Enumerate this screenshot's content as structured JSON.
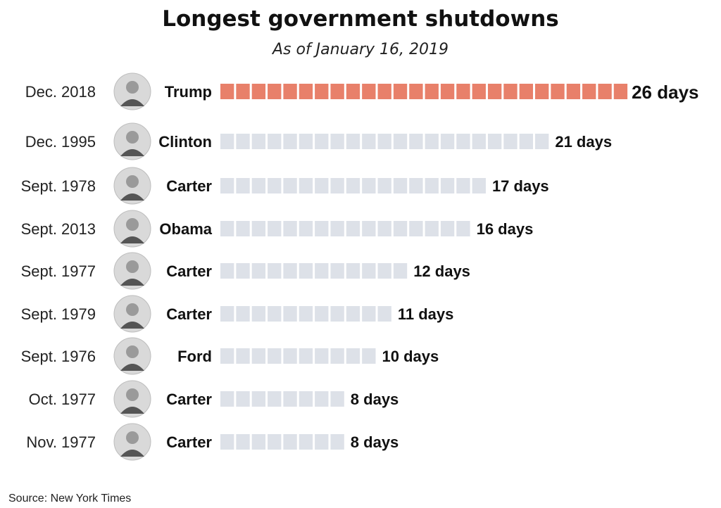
{
  "chart_data": {
    "type": "bar",
    "title": "Longest government shutdowns",
    "subtitle": "As of January 16, 2019",
    "unit_label": "days",
    "categories": [
      "Dec. 2018",
      "Dec. 1995",
      "Sept. 1978",
      "Sept. 2013",
      "Sept. 1977",
      "Sept. 1979",
      "Sept. 1976",
      "Oct. 1977",
      "Nov. 1977"
    ],
    "presidents": [
      "Trump",
      "Clinton",
      "Carter",
      "Obama",
      "Carter",
      "Carter",
      "Ford",
      "Carter",
      "Carter"
    ],
    "values": [
      26,
      21,
      17,
      16,
      12,
      11,
      10,
      8,
      8
    ],
    "value_labels": [
      "26 days",
      "21 days",
      "17 days",
      "16 days",
      "12 days",
      "11 days",
      "10 days",
      "8 days",
      "8 days"
    ],
    "highlight_index": 0,
    "source": "Source: New York Times"
  },
  "colors": {
    "highlight": "#e8806a",
    "default": "#dde1e8"
  }
}
